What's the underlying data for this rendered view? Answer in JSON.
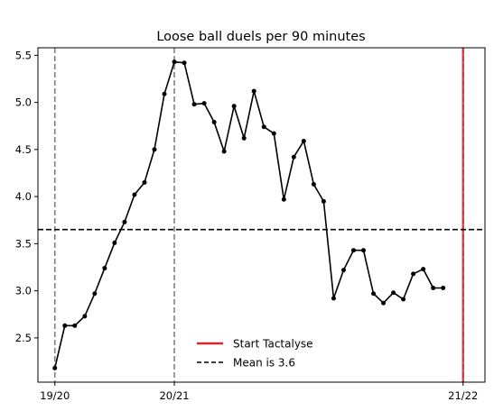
{
  "chart_data": {
    "type": "line",
    "title": "Loose ball duels per 90 minutes",
    "xlabel": "",
    "ylabel": "",
    "x_ticks": [
      {
        "x": 0,
        "label": "19/20"
      },
      {
        "x": 12,
        "label": "20/21"
      },
      {
        "x": 41,
        "label": "21/22"
      }
    ],
    "xlim": [
      -1.7,
      43.2
    ],
    "ylim": [
      2.03,
      5.58
    ],
    "y_ticks": [
      2.5,
      3.0,
      3.5,
      4.0,
      4.5,
      5.0,
      5.5
    ],
    "grid": false,
    "series": [
      {
        "color": "#000000",
        "marker": "dot",
        "x": [
          0,
          1,
          2,
          3,
          4,
          5,
          6,
          7,
          8,
          9,
          10,
          11,
          12,
          13,
          14,
          15,
          16,
          17,
          18,
          19,
          20,
          21,
          22,
          23,
          24,
          25,
          26,
          27,
          28,
          29,
          30,
          31,
          32,
          33,
          34,
          35,
          36,
          37,
          38,
          39
        ],
        "values": [
          2.18,
          2.63,
          2.63,
          2.73,
          2.97,
          3.24,
          3.51,
          3.73,
          4.02,
          4.15,
          4.5,
          5.09,
          5.43,
          5.42,
          4.98,
          4.99,
          4.79,
          4.48,
          4.96,
          4.62,
          5.12,
          4.74,
          4.67,
          3.97,
          4.42,
          4.59,
          4.13,
          3.95,
          2.92,
          3.22,
          3.43,
          3.43,
          2.97,
          2.87,
          2.98,
          2.91,
          3.18,
          3.23,
          3.03,
          3.03
        ]
      }
    ],
    "season_lines": [
      {
        "x": 0,
        "color": "#808080",
        "style": "dashed"
      },
      {
        "x": 12,
        "color": "#808080",
        "style": "dashed"
      },
      {
        "x": 41,
        "color": "#808080",
        "style": "dashed"
      }
    ],
    "start_line": {
      "x": 41,
      "color": "#d62728",
      "label": "Start Tactalyse"
    },
    "mean_line": {
      "y": 3.65,
      "color": "#000000",
      "style": "dashed",
      "label": "Mean is 3.6"
    },
    "legend_position": "lower-center"
  }
}
